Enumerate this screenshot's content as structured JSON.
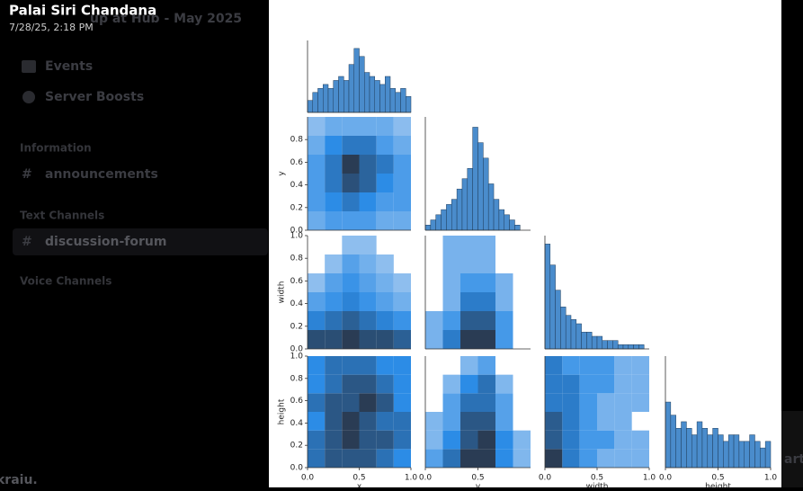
{
  "app": {
    "server_title": "up at Hub - May 2025",
    "nav": [
      "Events",
      "Server Boosts"
    ],
    "categories": [
      {
        "name": "Information",
        "channels": [
          "announcements"
        ]
      },
      {
        "name": "Text Channels",
        "channels": [
          "discussion-forum"
        ]
      },
      {
        "name": "Voice Channels",
        "channels": []
      }
    ],
    "user": "kraiu.",
    "side_text": "art"
  },
  "viewer": {
    "author": "Palai Siri Chandana",
    "timestamp": "7/28/25, 2:18 PM"
  },
  "chart_data": {
    "type": "pairplot",
    "color": "#1f77b4",
    "variables": [
      {
        "name": "x",
        "lim": [
          0,
          1
        ],
        "xticks": [
          {
            "value": 0,
            "label": "0.0"
          },
          {
            "value": 0.5,
            "label": "0.5"
          },
          {
            "value": 1,
            "label": "1.0"
          }
        ],
        "hist": {
          "bins": [
            0,
            0.05,
            0.1,
            0.15,
            0.2,
            0.25,
            0.3,
            0.35,
            0.4,
            0.45,
            0.5,
            0.55,
            0.6,
            0.65,
            0.7,
            0.75,
            0.8,
            0.85,
            0.9,
            0.95,
            1
          ],
          "counts": [
            3,
            5,
            6,
            7,
            6,
            8,
            9,
            8,
            12,
            16,
            14,
            10,
            9,
            8,
            7,
            9,
            6,
            5,
            6,
            4
          ],
          "ylim": [
            0,
            18
          ]
        }
      },
      {
        "name": "y",
        "lim": [
          0,
          1
        ],
        "xticks": [
          {
            "value": 0,
            "label": "0.0"
          },
          {
            "value": 0.5,
            "label": "0.5"
          }
        ],
        "yticks": [
          {
            "value": 0,
            "label": "0.0"
          },
          0.2,
          0.4,
          0.6,
          0.8
        ],
        "hist": {
          "bins": [
            0,
            0.05,
            0.1,
            0.15,
            0.2,
            0.25,
            0.3,
            0.35,
            0.4,
            0.45,
            0.5,
            0.55,
            0.6,
            0.65,
            0.7,
            0.75,
            0.8,
            0.85,
            0.9,
            0.95,
            1
          ],
          "counts": [
            1,
            2,
            3,
            4,
            5,
            6,
            8,
            10,
            12,
            20,
            17,
            14,
            9,
            6,
            4,
            3,
            2,
            1,
            0,
            0
          ],
          "ylim": [
            0,
            22
          ]
        }
      },
      {
        "name": "width",
        "lim": [
          0,
          1
        ],
        "xticks": [
          {
            "value": 0,
            "label": "0.0"
          },
          {
            "value": 0.5,
            "label": "0.5"
          },
          {
            "value": 1,
            "label": "1.0"
          }
        ],
        "yticks": [
          {
            "value": 0,
            "label": "0.0"
          },
          0.2,
          0.4,
          0.6,
          0.8,
          {
            "value": 1,
            "label": "1.0"
          }
        ],
        "hist": {
          "bins": [
            0,
            0.05,
            0.1,
            0.15,
            0.2,
            0.25,
            0.3,
            0.35,
            0.4,
            0.45,
            0.5,
            0.55,
            0.6,
            0.65,
            0.7,
            0.75,
            0.8,
            0.85,
            0.9,
            0.95,
            1
          ],
          "counts": [
            25,
            20,
            14,
            10,
            8,
            7,
            6,
            4,
            4,
            3,
            3,
            2,
            2,
            2,
            1,
            1,
            1,
            1,
            1,
            0
          ],
          "ylim": [
            0,
            27
          ]
        }
      },
      {
        "name": "height",
        "lim": [
          0,
          1
        ],
        "xticks": [
          {
            "value": 0,
            "label": "0.0"
          },
          {
            "value": 0.5,
            "label": "0.5"
          },
          {
            "value": 1,
            "label": "1.0"
          }
        ],
        "yticks": [
          {
            "value": 0,
            "label": "0.0"
          },
          0.2,
          0.4,
          0.6,
          0.8,
          {
            "value": 1,
            "label": "1.0"
          }
        ],
        "hist": {
          "bins": [
            0,
            0.05,
            0.1,
            0.15,
            0.2,
            0.25,
            0.3,
            0.35,
            0.4,
            0.45,
            0.5,
            0.55,
            0.6,
            0.65,
            0.7,
            0.75,
            0.8,
            0.85,
            0.9,
            0.95,
            1
          ],
          "counts": [
            10,
            8,
            6,
            7,
            6,
            5,
            7,
            6,
            5,
            6,
            5,
            4,
            5,
            5,
            4,
            4,
            5,
            4,
            3,
            4
          ],
          "ylim": [
            0,
            17
          ]
        }
      }
    ],
    "pairs": [
      [
        [
          [
            2,
            3,
            3,
            3,
            2,
            2
          ],
          [
            3,
            4,
            5,
            4,
            3,
            3
          ],
          [
            3,
            5,
            7,
            6,
            4,
            3
          ],
          [
            3,
            5,
            8,
            6,
            5,
            3
          ],
          [
            2,
            4,
            5,
            5,
            3,
            2
          ],
          [
            1,
            2,
            2,
            2,
            2,
            1
          ]
        ]
      ],
      [
        [
          [
            8,
            8,
            9,
            8,
            8,
            7
          ],
          [
            5,
            6,
            7,
            6,
            5,
            4
          ],
          [
            3,
            4,
            5,
            4,
            3,
            2
          ],
          [
            1,
            3,
            4,
            3,
            2,
            1
          ],
          [
            0,
            1,
            3,
            2,
            1,
            0
          ],
          [
            0,
            0,
            1,
            1,
            0,
            0
          ]
        ],
        [
          [
            1,
            3,
            5,
            5,
            2,
            0
          ],
          [
            1,
            2,
            4,
            4,
            2,
            0
          ],
          [
            0,
            1,
            3,
            3,
            1,
            0
          ],
          [
            0,
            1,
            2,
            2,
            1,
            0
          ],
          [
            0,
            1,
            1,
            1,
            0,
            0
          ],
          [
            0,
            1,
            1,
            1,
            0,
            0
          ]
        ]
      ],
      [
        [
          [
            4,
            5,
            5,
            5,
            4,
            3
          ],
          [
            4,
            5,
            6,
            5,
            5,
            4
          ],
          [
            3,
            5,
            6,
            5,
            4,
            4
          ],
          [
            4,
            5,
            5,
            6,
            5,
            3
          ],
          [
            3,
            4,
            5,
            5,
            4,
            3
          ],
          [
            3,
            4,
            4,
            4,
            3,
            3
          ]
        ],
        [
          [
            2,
            4,
            6,
            6,
            3,
            1
          ],
          [
            1,
            3,
            5,
            6,
            3,
            1
          ],
          [
            1,
            2,
            5,
            5,
            2,
            0
          ],
          [
            0,
            2,
            4,
            4,
            2,
            0
          ],
          [
            0,
            1,
            3,
            4,
            1,
            0
          ],
          [
            0,
            0,
            1,
            2,
            0,
            0
          ]
        ],
        [
          [
            5,
            3,
            2,
            1,
            1,
            1
          ],
          [
            4,
            3,
            2,
            2,
            1,
            1
          ],
          [
            4,
            3,
            2,
            1,
            1,
            0
          ],
          [
            3,
            3,
            2,
            1,
            1,
            1
          ],
          [
            3,
            3,
            2,
            2,
            1,
            1
          ],
          [
            3,
            2,
            2,
            2,
            1,
            1
          ]
        ]
      ]
    ]
  }
}
